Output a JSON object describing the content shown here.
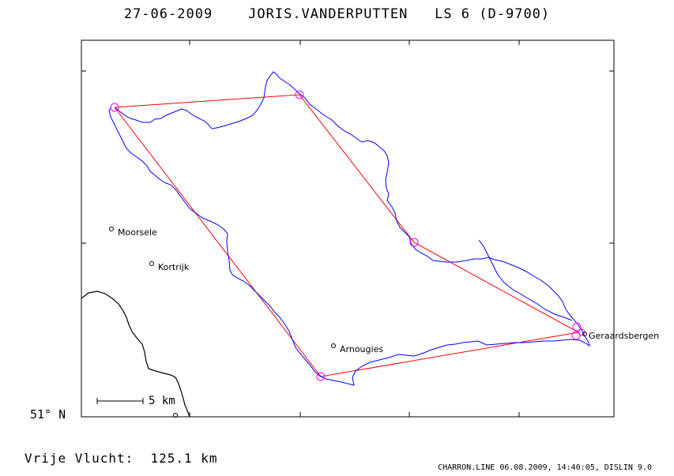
{
  "header": {
    "date": "27-06-2009",
    "pilot": "JORIS.VANDERPUTTEN",
    "glider": "LS 6 (D-9700)"
  },
  "places": [
    {
      "name": "Moorsele",
      "key": "moorsele"
    },
    {
      "name": "Kortrijk",
      "key": "kortrijk"
    },
    {
      "name": "Arnougies",
      "key": "arnougies"
    },
    {
      "name": "Geraardsbergen",
      "key": "geraardsbergen"
    }
  ],
  "axis": {
    "lat_label": "51° N"
  },
  "scale": {
    "label": "5 km"
  },
  "distance": {
    "label": "Vrije Vlucht:",
    "value": "125.1 km"
  },
  "footer": "CHARRON.LINE 06.08.2009, 14:40:05, DISLIN 9.0",
  "colors": {
    "track": "#0000ff",
    "task": "#ff0000",
    "turnpoint": "#ff00ff",
    "frame": "#000000"
  }
}
